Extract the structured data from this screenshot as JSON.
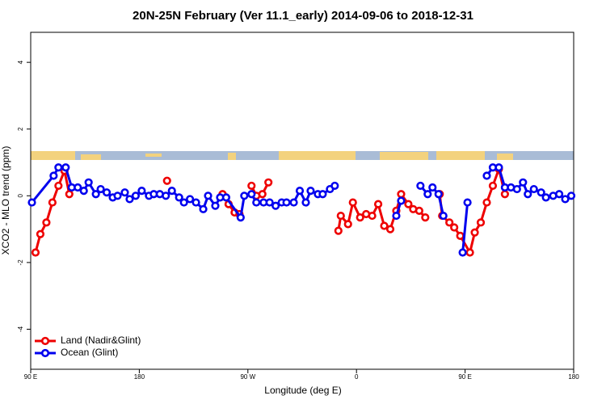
{
  "chart_data": {
    "type": "line",
    "title": "20N-25N February (Ver 11.1_early)   2014-09-06 to 2018-12-31",
    "xlabel": "Longitude (deg E)",
    "ylabel": "XCO2 - MLO trend (ppm)",
    "xlim": [
      90,
      540
    ],
    "xticks": [
      {
        "value": 90,
        "label": "90 E"
      },
      180,
      {
        "value": 270,
        "label": "90 W"
      },
      {
        "value": 360,
        "label": "0"
      },
      {
        "value": 450,
        "label": "90 E"
      },
      {
        "value": 540,
        "label": "180"
      }
    ],
    "ylim": [
      -5.2,
      4.9
    ],
    "yticks": [
      -4,
      -2,
      0,
      2,
      4
    ],
    "legend": "bottomleft",
    "series": [
      {
        "name": "Land (Nadir&Glint)",
        "color": "#ee0000",
        "x": [
          94,
          98,
          103,
          108,
          113,
          118,
          122,
          null,
          203,
          null,
          249,
          254,
          259,
          263,
          null,
          273,
          277,
          282,
          287,
          null,
          345,
          347,
          353,
          357,
          363,
          368,
          373,
          378,
          383,
          388,
          393,
          397,
          403,
          407,
          412,
          417,
          null,
          429,
          431,
          437,
          441,
          446,
          454,
          458,
          463,
          468,
          473,
          478,
          483
        ],
        "values": [
          -1.7,
          -1.15,
          -0.8,
          -0.2,
          0.3,
          0.75,
          0.05,
          null,
          0.45,
          null,
          0.05,
          -0.25,
          -0.5,
          -0.55,
          null,
          0.3,
          0,
          0.05,
          0.4,
          null,
          -1.05,
          -0.6,
          -0.85,
          -0.2,
          -0.65,
          -0.55,
          -0.6,
          -0.25,
          -0.9,
          -1.0,
          -0.45,
          0.05,
          -0.25,
          -0.4,
          -0.45,
          -0.65,
          null,
          0.05,
          -0.6,
          -0.8,
          -0.95,
          -1.2,
          -1.7,
          -1.1,
          -0.8,
          -0.2,
          0.3,
          0.8,
          0.05
        ]
      },
      {
        "name": "Ocean (Glint)",
        "color": "#0000ee",
        "x": [
          91,
          109,
          113,
          119,
          124,
          129,
          134,
          138,
          144,
          148,
          153,
          158,
          162,
          168,
          172,
          177,
          182,
          188,
          192,
          197,
          202,
          207,
          213,
          217,
          222,
          227,
          233,
          237,
          243,
          247,
          252,
          264,
          267,
          273,
          277,
          283,
          288,
          293,
          298,
          302,
          308,
          313,
          318,
          322,
          328,
          332,
          338,
          342,
          null,
          393,
          397,
          null,
          413,
          419,
          423,
          428,
          432,
          null,
          448,
          452,
          null,
          468,
          473,
          478,
          483,
          488,
          493,
          498,
          502,
          507,
          513,
          517,
          523,
          528,
          533,
          538
        ],
        "values": [
          -0.2,
          0.6,
          0.85,
          0.85,
          0.25,
          0.25,
          0.15,
          0.4,
          0.05,
          0.2,
          0.1,
          -0.05,
          0,
          0.1,
          -0.1,
          0,
          0.15,
          0,
          0.05,
          0.05,
          0,
          0.15,
          -0.05,
          -0.2,
          -0.1,
          -0.2,
          -0.4,
          0,
          -0.3,
          -0.05,
          -0.05,
          -0.65,
          0,
          0.05,
          -0.2,
          -0.2,
          -0.2,
          -0.3,
          -0.2,
          -0.2,
          -0.2,
          0.15,
          -0.2,
          0.15,
          0.05,
          0.05,
          0.2,
          0.3,
          null,
          -0.6,
          -0.15,
          null,
          0.3,
          0.05,
          0.25,
          0.05,
          -0.6,
          null,
          -1.7,
          -0.2,
          null,
          0.6,
          0.85,
          0.85,
          0.25,
          0.25,
          0.2,
          0.4,
          0.05,
          0.2,
          0.1,
          -0.05,
          0,
          0.05,
          -0.1,
          0
        ]
      }
    ]
  }
}
